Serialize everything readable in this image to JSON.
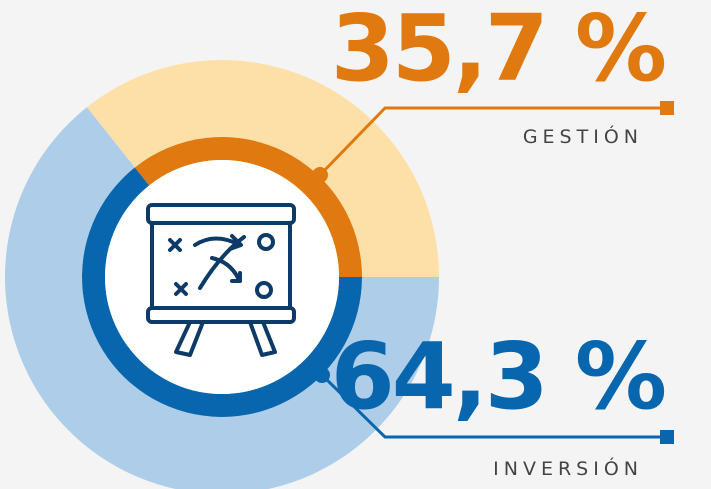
{
  "chart_data": {
    "type": "donut",
    "categories": [
      "GESTIÓN",
      "INVERSIÓN"
    ],
    "values": [
      35.7,
      64.3
    ],
    "value_labels": [
      "35,7 %",
      "64,3 %"
    ],
    "colors": [
      "#e07a10",
      "#0866ae"
    ],
    "light_colors": [
      "#fde0a8",
      "#aecde8"
    ]
  }
}
